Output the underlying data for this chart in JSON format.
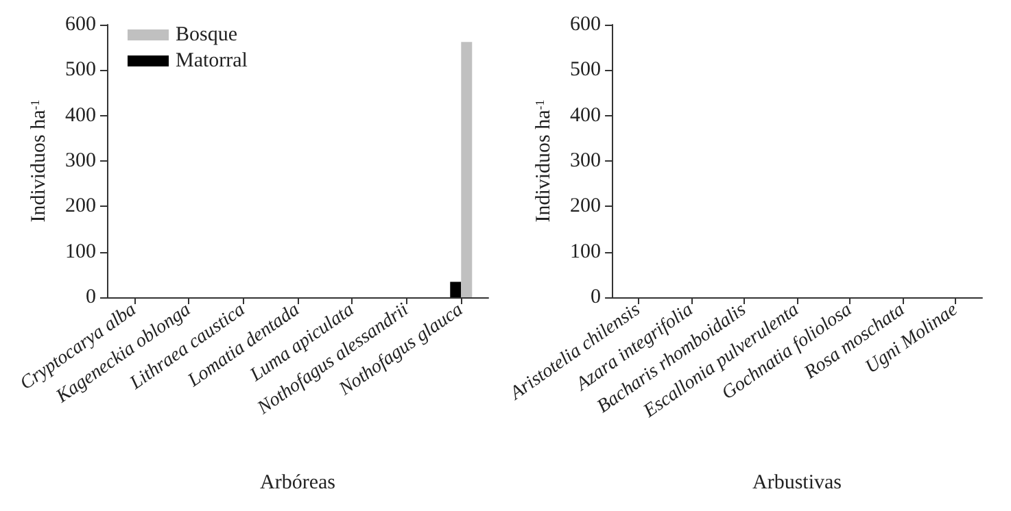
{
  "chart_data": [
    {
      "type": "bar",
      "xlabel": "Arbóreas",
      "ylabel": "Individuos ha$^{-1}$",
      "categories": [
        "Cryptocarya alba",
        "Kageneckia oblonga",
        "Lithraea caustica",
        "Lomatia dentada",
        "Luma apiculata",
        "Nothofagus alessandrii",
        "Nothofagus glauca"
      ],
      "series": [
        {
          "name": "Matorral",
          "color": "#000000",
          "values": [
            0,
            0,
            0,
            0,
            0,
            0,
            34
          ]
        },
        {
          "name": "Bosque",
          "color": "#c0c0c0",
          "values": [
            0,
            0,
            0,
            0,
            0,
            0,
            562
          ]
        }
      ],
      "ylim": [
        0,
        600
      ],
      "yticks": [
        0,
        100,
        200,
        300,
        400,
        500,
        600
      ],
      "legend": "top left"
    },
    {
      "type": "bar",
      "xlabel": "Arbustivas",
      "ylabel": "Individuos ha$^{-1}$",
      "categories": [
        "Aristotelia chilensis",
        "Azara integrifolia",
        "Bacharis rhomboidalis",
        "Escallonia pulverulenta",
        "Gochnatia foliolosa",
        "Rosa moschata",
        "Ugni Molinae"
      ],
      "values": [
        0,
        0,
        0,
        0,
        0,
        0,
        0
      ],
      "ylim": [
        0,
        600
      ],
      "yticks": [
        0,
        100,
        200,
        300,
        400,
        500,
        600
      ]
    }
  ]
}
